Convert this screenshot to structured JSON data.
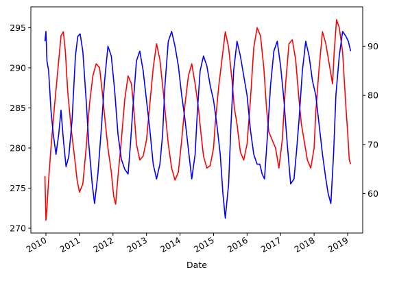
{
  "chart_data": {
    "type": "line",
    "title": "",
    "xlabel": "Date",
    "ylabel_left": "",
    "ylabel_right": "",
    "x_ticks": [
      "2010",
      "2011",
      "2012",
      "2013",
      "2014",
      "2015",
      "2016",
      "2017",
      "2018",
      "2019"
    ],
    "xlim": [
      2009.55,
      2019.45
    ],
    "y_left": {
      "ticks": [
        270,
        275,
        280,
        285,
        290,
        295
      ],
      "ylim": [
        269.4,
        297.6
      ]
    },
    "y_right": {
      "ticks": [
        60,
        70,
        80,
        90
      ],
      "ylim": [
        52.0,
        98.0
      ]
    },
    "grid": false,
    "legend": "none",
    "series": [
      {
        "axis": "left",
        "color": "#ff0000",
        "x": [
          2009.97,
          2010.0,
          2010.03,
          2010.08,
          2010.15,
          2010.25,
          2010.35,
          2010.45,
          2010.52,
          2010.58,
          2010.65,
          2010.75,
          2010.85,
          2010.93,
          2011.0,
          2011.1,
          2011.2,
          2011.3,
          2011.4,
          2011.5,
          2011.6,
          2011.68,
          2011.75,
          2011.85,
          2011.95,
          2012.02,
          2012.08,
          2012.15,
          2012.25,
          2012.35,
          2012.45,
          2012.55,
          2012.62,
          2012.7,
          2012.8,
          2012.9,
          2013.0,
          2013.1,
          2013.2,
          2013.3,
          2013.4,
          2013.5,
          2013.58,
          2013.65,
          2013.75,
          2013.85,
          2013.95,
          2014.05,
          2014.15,
          2014.25,
          2014.35,
          2014.45,
          2014.55,
          2014.62,
          2014.7,
          2014.8,
          2014.9,
          2015.0,
          2015.05,
          2015.15,
          2015.25,
          2015.35,
          2015.45,
          2015.55,
          2015.62,
          2015.7,
          2015.8,
          2015.9,
          2016.0,
          2016.1,
          2016.2,
          2016.3,
          2016.4,
          2016.5,
          2016.58,
          2016.65,
          2016.75,
          2016.85,
          2016.95,
          2017.05,
          2017.15,
          2017.25,
          2017.35,
          2017.45,
          2017.55,
          2017.62,
          2017.7,
          2017.8,
          2017.9,
          2018.0,
          2018.05,
          2018.15,
          2018.25,
          2018.35,
          2018.45,
          2018.55,
          2018.6,
          2018.67,
          2018.75,
          2018.85,
          2018.95,
          2019.0,
          2019.05,
          2019.09
        ],
        "y": [
          276.5,
          271.0,
          272.5,
          276.0,
          280.0,
          285.0,
          289.5,
          294.0,
          294.5,
          292.0,
          287.0,
          282.5,
          279.0,
          276.0,
          274.5,
          275.5,
          280.0,
          285.5,
          289.0,
          290.5,
          290.0,
          287.0,
          284.0,
          280.0,
          277.0,
          274.0,
          273.0,
          276.5,
          281.0,
          286.0,
          289.0,
          288.0,
          285.0,
          280.5,
          278.5,
          279.0,
          281.0,
          285.5,
          290.0,
          293.0,
          291.0,
          287.0,
          283.5,
          280.5,
          277.5,
          276.0,
          277.0,
          281.0,
          285.5,
          289.0,
          290.5,
          288.0,
          285.0,
          282.0,
          279.0,
          277.5,
          277.8,
          280.0,
          283.0,
          287.5,
          291.0,
          294.5,
          292.5,
          288.5,
          285.0,
          283.0,
          279.5,
          278.5,
          280.5,
          286.0,
          292.5,
          295.0,
          294.0,
          290.0,
          285.0,
          282.0,
          281.0,
          280.0,
          277.5,
          281.0,
          288.0,
          293.0,
          293.5,
          291.0,
          286.0,
          283.0,
          281.0,
          278.5,
          277.5,
          280.0,
          284.5,
          290.0,
          294.5,
          293.0,
          290.5,
          288.0,
          292.0,
          296.0,
          295.0,
          292.0,
          285.0,
          282.0,
          278.5,
          278.0
        ]
      },
      {
        "axis": "right",
        "color": "#0000ff",
        "x": [
          2009.97,
          2010.0,
          2010.03,
          2010.08,
          2010.15,
          2010.22,
          2010.3,
          2010.38,
          2010.45,
          2010.52,
          2010.6,
          2010.68,
          2010.78,
          2010.88,
          2010.95,
          2011.02,
          2011.1,
          2011.2,
          2011.28,
          2011.38,
          2011.45,
          2011.55,
          2011.65,
          2011.75,
          2011.85,
          2011.95,
          2012.05,
          2012.15,
          2012.25,
          2012.35,
          2012.45,
          2012.52,
          2012.6,
          2012.7,
          2012.8,
          2012.9,
          2013.0,
          2013.1,
          2013.2,
          2013.3,
          2013.4,
          2013.48,
          2013.55,
          2013.65,
          2013.75,
          2013.85,
          2013.95,
          2014.05,
          2014.15,
          2014.25,
          2014.35,
          2014.45,
          2014.52,
          2014.6,
          2014.7,
          2014.8,
          2014.9,
          2015.0,
          2015.1,
          2015.2,
          2015.28,
          2015.35,
          2015.45,
          2015.52,
          2015.6,
          2015.7,
          2015.8,
          2015.9,
          2016.0,
          2016.1,
          2016.2,
          2016.3,
          2016.38,
          2016.45,
          2016.52,
          2016.6,
          2016.7,
          2016.8,
          2016.9,
          2017.0,
          2017.1,
          2017.2,
          2017.3,
          2017.4,
          2017.48,
          2017.55,
          2017.65,
          2017.75,
          2017.85,
          2017.95,
          2018.05,
          2018.15,
          2018.25,
          2018.35,
          2018.42,
          2018.5,
          2018.58,
          2018.65,
          2018.75,
          2018.85,
          2018.95,
          2019.02,
          2019.09
        ],
        "y": [
          91.0,
          93.0,
          87.0,
          85.0,
          77.0,
          72.0,
          68.0,
          72.0,
          77.0,
          71.0,
          65.5,
          67.5,
          75.0,
          88.0,
          92.0,
          92.5,
          89.0,
          79.0,
          70.0,
          62.0,
          58.0,
          64.0,
          73.0,
          83.0,
          90.0,
          88.0,
          81.0,
          72.0,
          67.0,
          65.0,
          64.0,
          70.0,
          78.0,
          87.0,
          89.0,
          85.0,
          79.0,
          73.0,
          66.0,
          63.0,
          66.0,
          72.0,
          82.0,
          91.0,
          93.0,
          90.0,
          86.0,
          80.0,
          75.0,
          69.0,
          63.0,
          68.0,
          77.0,
          85.0,
          88.0,
          86.0,
          82.0,
          79.0,
          74.0,
          68.0,
          60.0,
          55.0,
          62.0,
          74.0,
          85.0,
          91.0,
          88.0,
          84.0,
          80.0,
          73.0,
          68.0,
          66.0,
          66.0,
          64.0,
          63.0,
          71.0,
          82.0,
          89.0,
          91.0,
          86.0,
          79.0,
          70.0,
          62.0,
          63.0,
          69.0,
          75.0,
          85.0,
          91.0,
          88.0,
          83.0,
          80.0,
          74.0,
          68.0,
          63.0,
          60.0,
          58.0,
          68.0,
          80.0,
          88.0,
          93.0,
          92.0,
          91.0,
          89.0
        ]
      }
    ]
  }
}
